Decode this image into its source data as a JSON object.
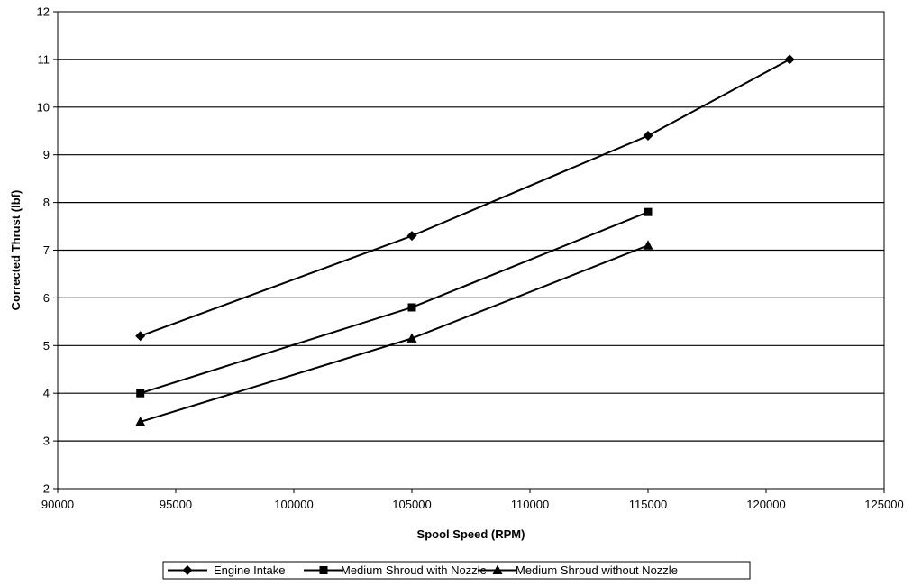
{
  "chart_data": {
    "type": "line",
    "title": "",
    "xlabel": "Spool Speed (RPM)",
    "ylabel": "Corrected Thrust (lbf)",
    "xlim": [
      90000,
      125000
    ],
    "ylim": [
      2,
      12
    ],
    "x_ticks": [
      90000,
      95000,
      100000,
      105000,
      110000,
      115000,
      120000,
      125000
    ],
    "y_ticks": [
      2,
      3,
      4,
      5,
      6,
      7,
      8,
      9,
      10,
      11,
      12
    ],
    "grid": "horizontal",
    "legend_placement": "bottom",
    "series": [
      {
        "name": "Engine Intake",
        "marker": "diamond",
        "color": "#000000",
        "x": [
          93500,
          105000,
          115000,
          121000
        ],
        "y": [
          5.2,
          7.3,
          9.4,
          11.0
        ]
      },
      {
        "name": "Medium Shroud with Nozzle",
        "marker": "square",
        "color": "#000000",
        "x": [
          93500,
          105000,
          115000
        ],
        "y": [
          4.0,
          5.8,
          7.8
        ]
      },
      {
        "name": "Medium Shroud without Nozzle",
        "marker": "triangle",
        "color": "#000000",
        "x": [
          93500,
          105000,
          115000
        ],
        "y": [
          3.4,
          5.15,
          7.1
        ]
      }
    ]
  }
}
